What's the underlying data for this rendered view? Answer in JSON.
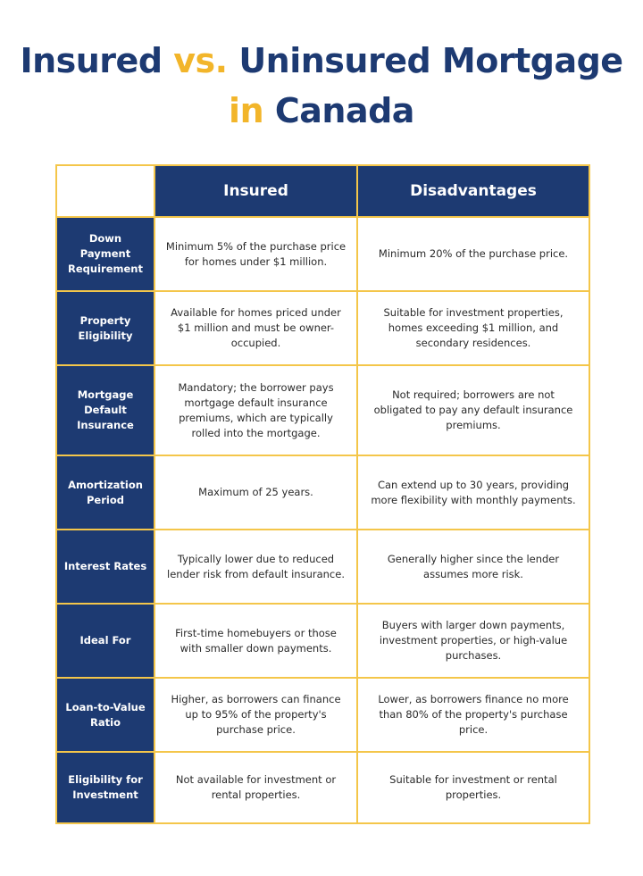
{
  "title": {
    "part1": "Insured",
    "vs": "vs.",
    "part2": "Uninsured Mortgage",
    "in": "in",
    "part3": "Canada"
  },
  "colors": {
    "navy": "#1d3a72",
    "gold": "#f2b52a"
  },
  "table": {
    "headers": [
      "",
      "Insured",
      "Disadvantages"
    ],
    "rows": [
      {
        "label": "Down Payment Requirement",
        "insured": "Minimum 5% of the purchase price for homes under $1 million.",
        "other": "Minimum 20% of the purchase price."
      },
      {
        "label": "Property Eligibility",
        "insured": "Available for homes priced under $1 million and must be owner-occupied.",
        "other": "Suitable for investment properties, homes exceeding $1 million, and secondary residences."
      },
      {
        "label": "Mortgage Default Insurance",
        "insured": "Mandatory; the borrower pays mortgage default insurance premiums, which are typically rolled into the mortgage.",
        "other": "Not required; borrowers are not obligated to pay any default insurance premiums."
      },
      {
        "label": "Amortization Period",
        "insured": "Maximum of 25 years.",
        "other": "Can extend up to 30 years, providing more flexibility with monthly payments."
      },
      {
        "label": "Interest Rates",
        "insured": "Typically lower due to reduced lender risk from default insurance.",
        "other": "Generally higher since the lender assumes more risk."
      },
      {
        "label": "Ideal For",
        "insured": "First-time homebuyers or those with smaller down payments.",
        "other": "Buyers with larger down payments, investment properties, or high-value purchases."
      },
      {
        "label": "Loan-to-Value Ratio",
        "insured": "Higher, as borrowers can finance up to 95% of the property's purchase price.",
        "other": "Lower, as borrowers finance no more than 80% of the property's purchase price."
      },
      {
        "label": "Eligibility for Investment",
        "insured": "Not available for investment or rental properties.",
        "other": "Suitable for investment or rental properties."
      }
    ]
  }
}
